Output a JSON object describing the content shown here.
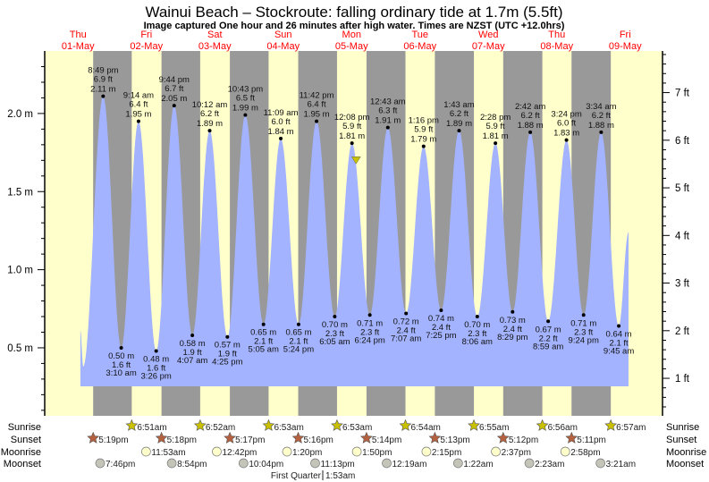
{
  "title": "Wainui Beach – Stockroute: falling  ordinary tide at 1.7m (5.5ft)",
  "subtitle": "Image captured One hour and 26 minutes after high water. Times are NZST (UTC +12.0hrs)",
  "colors": {
    "day": "#ffffcc",
    "night": "#999999",
    "tide_fill": "#a3b3ff",
    "current_marker": "#c8c000",
    "day_label": "#ff0000",
    "sunrise_icon": "#c8c000",
    "sunset_icon": "#b5603f",
    "moonrise_icon": "#ffffcc",
    "moonset_icon": "#c4c4b8"
  },
  "chart_data": {
    "type": "area",
    "days": [
      {
        "weekday": "Thu",
        "date": "01-May"
      },
      {
        "weekday": "Fri",
        "date": "02-May"
      },
      {
        "weekday": "Sat",
        "date": "03-May"
      },
      {
        "weekday": "Sun",
        "date": "04-May"
      },
      {
        "weekday": "Mon",
        "date": "05-May"
      },
      {
        "weekday": "Tue",
        "date": "06-May"
      },
      {
        "weekday": "Wed",
        "date": "07-May"
      },
      {
        "weekday": "Thu",
        "date": "08-May"
      },
      {
        "weekday": "Fri",
        "date": "09-May"
      }
    ],
    "y_left": {
      "unit": "m",
      "ticks": [
        "0.5 m",
        "1.0 m",
        "1.5 m",
        "2.0 m"
      ],
      "tick_values": [
        0.5,
        1.0,
        1.5,
        2.0
      ],
      "range": [
        0.06,
        2.41
      ]
    },
    "y_right": {
      "unit": "ft",
      "ticks": [
        "1 ft",
        "2 ft",
        "3 ft",
        "4 ft",
        "5 ft",
        "6 ft",
        "7 ft"
      ],
      "tick_values": [
        1,
        2,
        3,
        4,
        5,
        6,
        7
      ]
    },
    "current": {
      "date": "05-May",
      "time": "1:34 pm",
      "m": 1.7,
      "ft": 5.5
    },
    "extremes": [
      {
        "date": "01-May",
        "time": "12:50 pm",
        "m": 0.61,
        "type": "edge",
        "labeled": false
      },
      {
        "date": "01-May",
        "time": "1:50 pm",
        "m": 0.38,
        "type": "low",
        "labeled": false
      },
      {
        "date": "01-May",
        "time": "8:49 pm",
        "m": 2.11,
        "ft": "6.9 ft",
        "m_label": "2.11 m",
        "type": "high",
        "labeled": true
      },
      {
        "date": "02-May",
        "time": "3:10 am",
        "m": 0.5,
        "ft": "1.6 ft",
        "m_label": "0.50 m",
        "type": "low",
        "labeled": true
      },
      {
        "date": "02-May",
        "time": "9:14 am",
        "m": 1.95,
        "ft": "6.4 ft",
        "m_label": "1.95 m",
        "type": "high",
        "labeled": true
      },
      {
        "date": "02-May",
        "time": "3:26 pm",
        "m": 0.48,
        "ft": "1.6 ft",
        "m_label": "0.48 m",
        "type": "low",
        "labeled": true
      },
      {
        "date": "02-May",
        "time": "9:44 pm",
        "m": 2.05,
        "ft": "6.7 ft",
        "m_label": "2.05 m",
        "type": "high",
        "labeled": true
      },
      {
        "date": "03-May",
        "time": "4:07 am",
        "m": 0.58,
        "ft": "1.9 ft",
        "m_label": "0.58 m",
        "type": "low",
        "labeled": true
      },
      {
        "date": "03-May",
        "time": "10:12 am",
        "m": 1.89,
        "ft": "6.2 ft",
        "m_label": "1.89 m",
        "type": "high",
        "labeled": true
      },
      {
        "date": "03-May",
        "time": "4:25 pm",
        "m": 0.57,
        "ft": "1.9 ft",
        "m_label": "0.57 m",
        "type": "low",
        "labeled": true
      },
      {
        "date": "03-May",
        "time": "10:43 pm",
        "m": 1.99,
        "ft": "6.5 ft",
        "m_label": "1.99 m",
        "type": "high",
        "labeled": true
      },
      {
        "date": "04-May",
        "time": "5:05 am",
        "m": 0.65,
        "ft": "2.1 ft",
        "m_label": "0.65 m",
        "type": "low",
        "labeled": true
      },
      {
        "date": "04-May",
        "time": "11:09 am",
        "m": 1.84,
        "ft": "6.0 ft",
        "m_label": "1.84 m",
        "type": "high",
        "labeled": true
      },
      {
        "date": "04-May",
        "time": "5:24 pm",
        "m": 0.65,
        "ft": "2.1 ft",
        "m_label": "0.65 m",
        "type": "low",
        "labeled": true
      },
      {
        "date": "04-May",
        "time": "11:42 pm",
        "m": 1.95,
        "ft": "6.4 ft",
        "m_label": "1.95 m",
        "type": "high",
        "labeled": true
      },
      {
        "date": "05-May",
        "time": "6:05 am",
        "m": 0.7,
        "ft": "2.3 ft",
        "m_label": "0.70 m",
        "type": "low",
        "labeled": true
      },
      {
        "date": "05-May",
        "time": "12:08 pm",
        "m": 1.81,
        "ft": "5.9 ft",
        "m_label": "1.81 m",
        "type": "high",
        "labeled": true
      },
      {
        "date": "05-May",
        "time": "6:24 pm",
        "m": 0.71,
        "ft": "2.3 ft",
        "m_label": "0.71 m",
        "type": "low",
        "labeled": true
      },
      {
        "date": "06-May",
        "time": "12:43 am",
        "m": 1.91,
        "ft": "6.3 ft",
        "m_label": "1.91 m",
        "type": "high",
        "labeled": true
      },
      {
        "date": "06-May",
        "time": "7:07 am",
        "m": 0.72,
        "ft": "2.4 ft",
        "m_label": "0.72 m",
        "type": "low",
        "labeled": true
      },
      {
        "date": "06-May",
        "time": "1:16 pm",
        "m": 1.79,
        "ft": "5.9 ft",
        "m_label": "1.79 m",
        "type": "high",
        "labeled": true
      },
      {
        "date": "06-May",
        "time": "7:25 pm",
        "m": 0.74,
        "ft": "2.4 ft",
        "m_label": "0.74 m",
        "type": "low",
        "labeled": true
      },
      {
        "date": "07-May",
        "time": "1:43 am",
        "m": 1.89,
        "ft": "6.2 ft",
        "m_label": "1.89 m",
        "type": "high",
        "labeled": true
      },
      {
        "date": "07-May",
        "time": "8:06 am",
        "m": 0.7,
        "ft": "2.3 ft",
        "m_label": "0.70 m",
        "type": "low",
        "labeled": true
      },
      {
        "date": "07-May",
        "time": "2:28 pm",
        "m": 1.81,
        "ft": "5.9 ft",
        "m_label": "1.81 m",
        "type": "high",
        "labeled": true
      },
      {
        "date": "07-May",
        "time": "8:29 pm",
        "m": 0.73,
        "ft": "2.4 ft",
        "m_label": "0.73 m",
        "type": "low",
        "labeled": true
      },
      {
        "date": "08-May",
        "time": "2:42 am",
        "m": 1.88,
        "ft": "6.2 ft",
        "m_label": "1.88 m",
        "type": "high",
        "labeled": true
      },
      {
        "date": "08-May",
        "time": "8:59 am",
        "m": 0.67,
        "ft": "2.2 ft",
        "m_label": "0.67 m",
        "type": "low",
        "labeled": true
      },
      {
        "date": "08-May",
        "time": "3:24 pm",
        "m": 1.83,
        "ft": "6.0 ft",
        "m_label": "1.83 m",
        "type": "high",
        "labeled": true
      },
      {
        "date": "08-May",
        "time": "9:24 pm",
        "m": 0.71,
        "ft": "2.3 ft",
        "m_label": "0.71 m",
        "type": "low",
        "labeled": true
      },
      {
        "date": "09-May",
        "time": "3:34 am",
        "m": 1.88,
        "ft": "6.2 ft",
        "m_label": "1.88 m",
        "type": "high",
        "labeled": true
      },
      {
        "date": "09-May",
        "time": "9:45 am",
        "m": 0.64,
        "ft": "2.1 ft",
        "m_label": "0.64 m",
        "type": "low",
        "labeled": true
      },
      {
        "date": "09-May",
        "time": "1:10 pm",
        "m": 1.24,
        "type": "edge",
        "labeled": false
      }
    ]
  },
  "almanac": {
    "row_labels": {
      "sunrise": "Sunrise",
      "sunset": "Sunset",
      "moonrise": "Moonrise",
      "moonset": "Moonset"
    },
    "sunrise": [
      {
        "date": "02-May",
        "time": "6:51am"
      },
      {
        "date": "03-May",
        "time": "6:52am"
      },
      {
        "date": "04-May",
        "time": "6:53am"
      },
      {
        "date": "05-May",
        "time": "6:53am"
      },
      {
        "date": "06-May",
        "time": "6:54am"
      },
      {
        "date": "07-May",
        "time": "6:55am"
      },
      {
        "date": "08-May",
        "time": "6:56am"
      },
      {
        "date": "09-May",
        "time": "6:57am"
      }
    ],
    "sunset": [
      {
        "date": "01-May",
        "time": "5:19pm"
      },
      {
        "date": "02-May",
        "time": "5:18pm"
      },
      {
        "date": "03-May",
        "time": "5:17pm"
      },
      {
        "date": "04-May",
        "time": "5:16pm"
      },
      {
        "date": "05-May",
        "time": "5:14pm"
      },
      {
        "date": "06-May",
        "time": "5:13pm"
      },
      {
        "date": "07-May",
        "time": "5:12pm"
      },
      {
        "date": "08-May",
        "time": "5:11pm"
      }
    ],
    "moonrise": [
      {
        "date": "02-May",
        "time": "11:53am"
      },
      {
        "date": "03-May",
        "time": "12:42pm"
      },
      {
        "date": "04-May",
        "time": "1:20pm"
      },
      {
        "date": "05-May",
        "time": "1:50pm"
      },
      {
        "date": "06-May",
        "time": "2:15pm"
      },
      {
        "date": "07-May",
        "time": "2:37pm"
      },
      {
        "date": "08-May",
        "time": "2:58pm"
      }
    ],
    "moonset": [
      {
        "date": "01-May",
        "time": "7:46pm"
      },
      {
        "date": "02-May",
        "time": "8:54pm"
      },
      {
        "date": "03-May",
        "time": "10:04pm"
      },
      {
        "date": "04-May",
        "time": "11:13pm"
      },
      {
        "date": "06-May",
        "time": "12:19am"
      },
      {
        "date": "07-May",
        "time": "1:22am"
      },
      {
        "date": "08-May",
        "time": "2:23am"
      },
      {
        "date": "09-May",
        "time": "3:21am"
      }
    ],
    "moon_phase": {
      "date": "05-May",
      "name": "First Quarter",
      "time": "1:53am"
    }
  }
}
